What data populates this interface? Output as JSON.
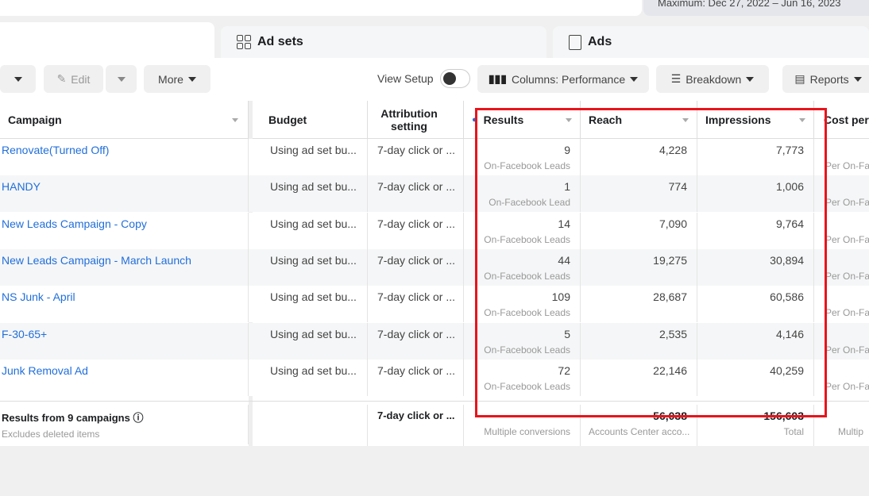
{
  "date_range": "Maximum: Dec 27, 2022 – Jun 16, 2023",
  "tabs": [
    {
      "label": "Ad sets",
      "icon": "ad-sets-icon"
    },
    {
      "label": "Ads",
      "icon": "ads-icon"
    }
  ],
  "toolbar": {
    "edit": "Edit",
    "more": "More",
    "view_setup": "View Setup",
    "columns": "Columns: Performance",
    "breakdown": "Breakdown",
    "reports": "Reports"
  },
  "columns": [
    "Campaign",
    "Budget",
    "Attribution setting",
    "Results",
    "Reach",
    "Impressions",
    "Cost per"
  ],
  "rows": [
    {
      "campaign": "Renovate(Turned Off)",
      "budget": "Using ad set bu...",
      "attribution": "7-day click or ...",
      "results": "9",
      "results_type": "On-Facebook Leads",
      "reach": "4,228",
      "impressions": "7,773",
      "cost_sub": "Per On-Fa"
    },
    {
      "campaign": "HANDY",
      "budget": "Using ad set bu...",
      "attribution": "7-day click or ...",
      "results": "1",
      "results_type": "On-Facebook Lead",
      "reach": "774",
      "impressions": "1,006",
      "cost_sub": "Per On-Fa"
    },
    {
      "campaign": "New Leads Campaign - Copy",
      "budget": "Using ad set bu...",
      "attribution": "7-day click or ...",
      "results": "14",
      "results_type": "On-Facebook Leads",
      "reach": "7,090",
      "impressions": "9,764",
      "cost_sub": "Per On-Fa"
    },
    {
      "campaign": "New Leads Campaign - March Launch",
      "budget": "Using ad set bu...",
      "attribution": "7-day click or ...",
      "results": "44",
      "results_type": "On-Facebook Leads",
      "reach": "19,275",
      "impressions": "30,894",
      "cost_sub": "Per On-Fa"
    },
    {
      "campaign": "NS Junk - April",
      "budget": "Using ad set bu...",
      "attribution": "7-day click or ...",
      "results": "109",
      "results_type": "On-Facebook Leads",
      "reach": "28,687",
      "impressions": "60,586",
      "cost_sub": "Per On-Fa"
    },
    {
      "campaign": "F-30-65+",
      "budget": "Using ad set bu...",
      "attribution": "7-day click or ...",
      "results": "5",
      "results_type": "On-Facebook Leads",
      "reach": "2,535",
      "impressions": "4,146",
      "cost_sub": "Per On-Fa"
    },
    {
      "campaign": "Junk Removal Ad",
      "budget": "Using ad set bu...",
      "attribution": "7-day click or ...",
      "results": "72",
      "results_type": "On-Facebook Leads",
      "reach": "22,146",
      "impressions": "40,259",
      "cost_sub": "Per On-Fa"
    }
  ],
  "footer": {
    "title": "Results from 9 campaigns",
    "subtitle": "Excludes deleted items",
    "attribution": "7-day click or ...",
    "results": "—",
    "results_sub": "Multiple conversions",
    "reach": "56,038",
    "reach_sub": "Accounts Center acco...",
    "impressions": "156,603",
    "impressions_sub": "Total",
    "cost_sub": "Multip"
  },
  "highlight_color": "#e8141c"
}
